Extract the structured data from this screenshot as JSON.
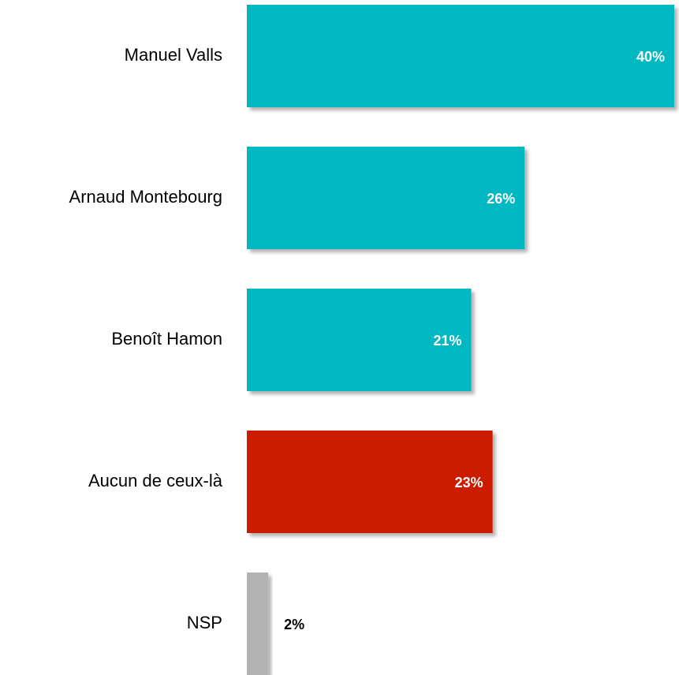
{
  "chart_data": {
    "type": "barh",
    "categories": [
      "Manuel Valls",
      "Arnaud Montebourg",
      "Benoît Hamon",
      "Aucun de ceux-là",
      "NSP"
    ],
    "values": [
      40,
      26,
      21,
      23,
      2
    ],
    "value_labels": [
      "40%",
      "26%",
      "21%",
      "23%",
      "2%"
    ],
    "colors": [
      "#00b8c2",
      "#00b8c2",
      "#00b8c2",
      "#cc1f00",
      "#b3b3b3"
    ]
  }
}
